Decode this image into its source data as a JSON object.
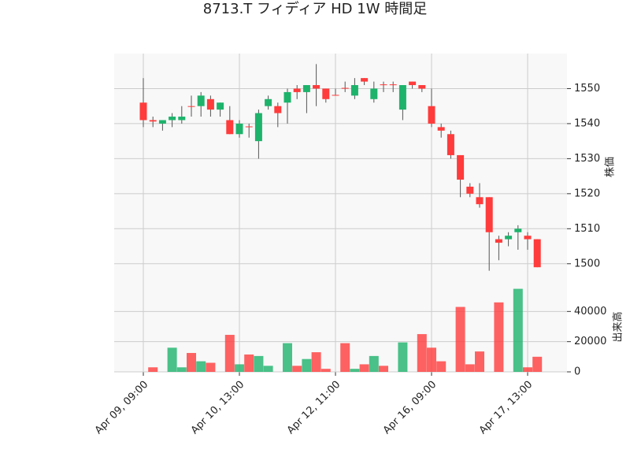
{
  "chart_data": {
    "type": "candlestick",
    "title": "8713.T フィディア HD 1W 時間足",
    "categories": [
      "Apr 09, 09:00",
      null,
      null,
      null,
      null,
      null,
      null,
      null,
      null,
      null,
      "Apr 10, 13:00",
      null,
      null,
      null,
      null,
      null,
      null,
      null,
      null,
      null,
      "Apr 12, 11:00",
      null,
      null,
      null,
      null,
      null,
      null,
      null,
      null,
      null,
      "Apr 16, 09:00",
      null,
      null,
      null,
      null,
      null,
      null,
      null,
      null,
      null,
      "Apr 17, 13:00",
      null
    ],
    "open": [
      1546,
      1541,
      1540,
      1541,
      1541,
      1545,
      1545,
      1547,
      1544,
      1541,
      1537,
      1539.2,
      1535,
      1545,
      1545,
      1546,
      1550,
      1549,
      1551,
      1550,
      1548.2,
      1550.2,
      1548,
      1553,
      1547,
      1551.2,
      1551.2,
      1544,
      1552,
      1551,
      1545,
      1539,
      1537,
      1531,
      1522,
      1519,
      1519,
      1507,
      1507,
      1509,
      1508,
      1507
    ],
    "high": [
      1553,
      1542,
      1541,
      1543,
      1545,
      1548,
      1549,
      1548,
      1546,
      1545,
      1541,
      1540,
      1544,
      1548,
      1546,
      1550,
      1551,
      1551,
      1557,
      1550,
      1550,
      1552,
      1553,
      1553,
      1552,
      1552,
      1552,
      1551,
      1552,
      1551,
      1550,
      1540,
      1538,
      1531,
      1523,
      1523,
      1519,
      1508,
      1509,
      1511,
      1509,
      1507
    ],
    "low": [
      1539,
      1539,
      1538,
      1539,
      1540,
      1542,
      1542,
      1542,
      1542,
      1537,
      1536,
      1536,
      1530,
      1544,
      1539,
      1540,
      1547,
      1543,
      1545,
      1546,
      1548,
      1549,
      1547,
      1551,
      1546,
      1549,
      1549,
      1541,
      1550,
      1549,
      1539,
      1536,
      1530,
      1519,
      1519,
      1516,
      1498,
      1501,
      1505,
      1504,
      1504,
      1499
    ],
    "close": [
      1541,
      1540.6,
      1541,
      1542,
      1542,
      1544.8,
      1548,
      1544,
      1546,
      1537,
      1540,
      1539,
      1543,
      1547,
      1543,
      1549,
      1549,
      1551,
      1550,
      1547,
      1548,
      1550,
      1551,
      1552,
      1550,
      1551,
      1551,
      1551,
      1551,
      1550,
      1540,
      1538,
      1531,
      1524,
      1520,
      1517,
      1509,
      1506,
      1508,
      1510,
      1507,
      1499
    ],
    "volume": [
      0,
      3000,
      0,
      16000,
      3000,
      12500,
      7000,
      6000,
      0,
      24500,
      5000,
      11500,
      10500,
      4000,
      0,
      19000,
      4000,
      8500,
      13000,
      2000,
      0,
      19000,
      2000,
      5000,
      10500,
      4000,
      0,
      19500,
      0,
      25000,
      16000,
      7000,
      0,
      43000,
      5000,
      13500,
      0,
      46000,
      0,
      55000,
      3000,
      10000
    ],
    "ylim": [
      1495,
      1560
    ],
    "yticks": [
      1500,
      1510,
      1520,
      1530,
      1540,
      1550
    ],
    "ylabel": "株価",
    "volume_ylim": [
      0,
      60000
    ],
    "volume_yticks": [
      0,
      20000,
      40000
    ],
    "volume_label": "出来高",
    "up_color": "#1db36b",
    "down_color": "#ff3b3b",
    "grid": true
  }
}
